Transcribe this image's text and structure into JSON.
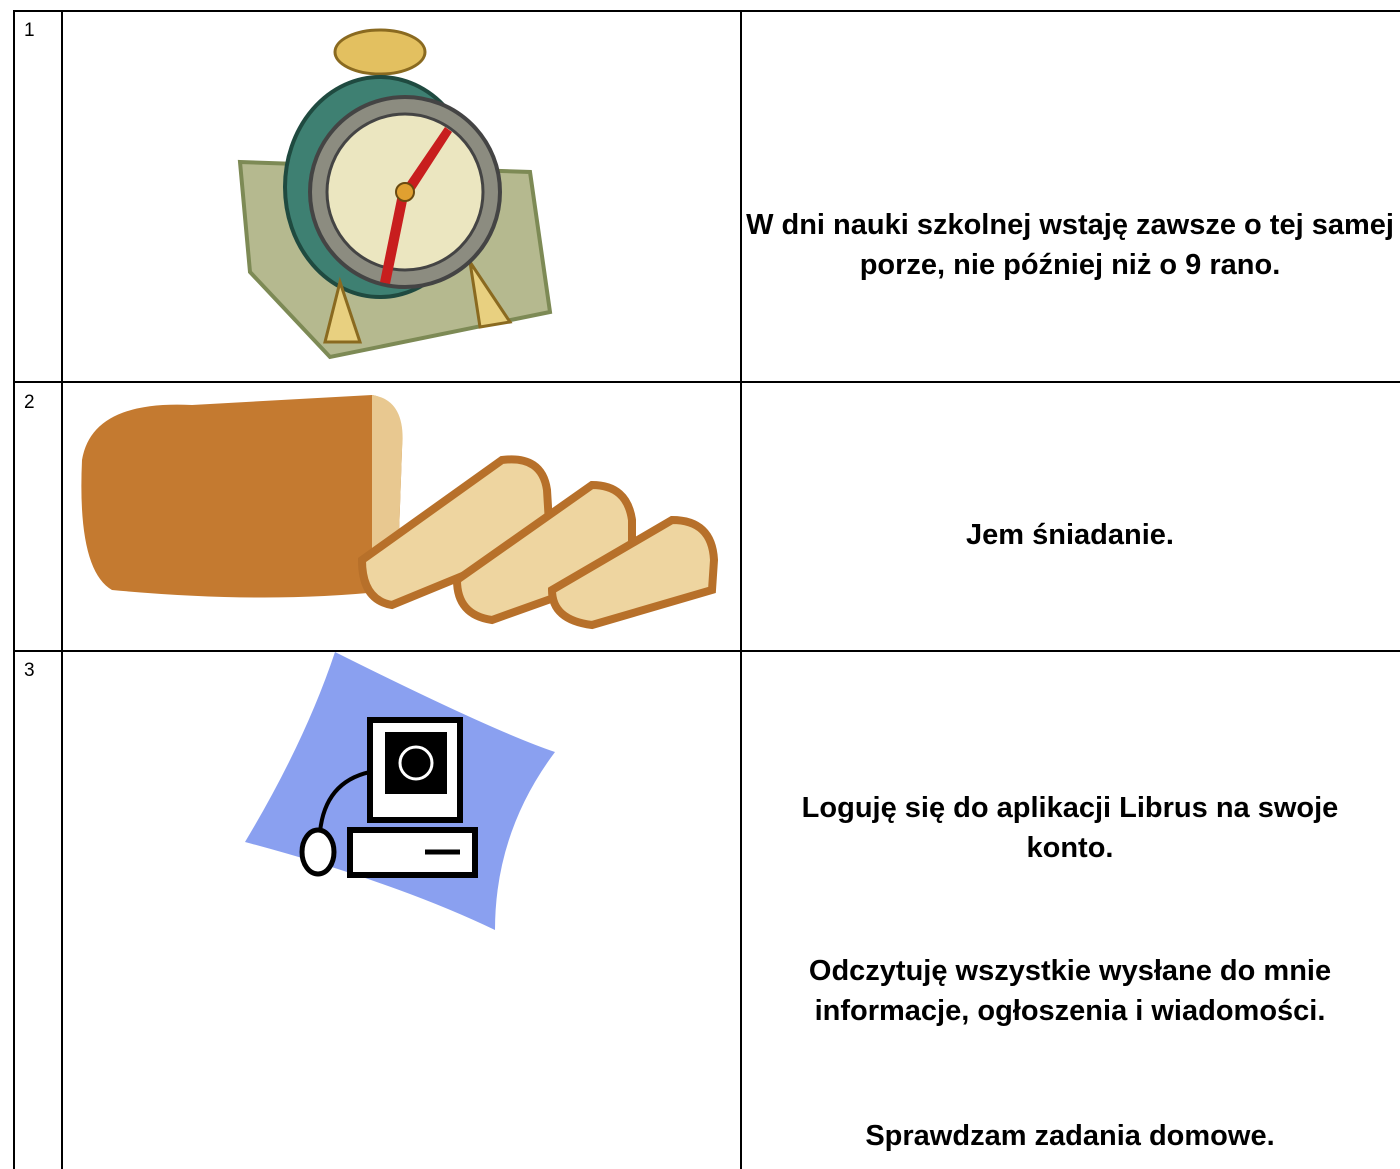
{
  "table": {
    "rows": [
      {
        "number": "1",
        "text": [
          "W dni nauki szkolnej wstaję zawsze o tej samej porze, nie później niż o 9 rano."
        ]
      },
      {
        "number": "2",
        "text": [
          "Jem śniadanie."
        ]
      },
      {
        "number": "3",
        "text": [
          "Loguję się do aplikacji Librus na swoje konto.",
          "Odczytuję wszystkie wysłane do mnie informacje, ogłoszenia i wiadomości.",
          "Sprawdzam zadania domowe."
        ]
      }
    ]
  }
}
